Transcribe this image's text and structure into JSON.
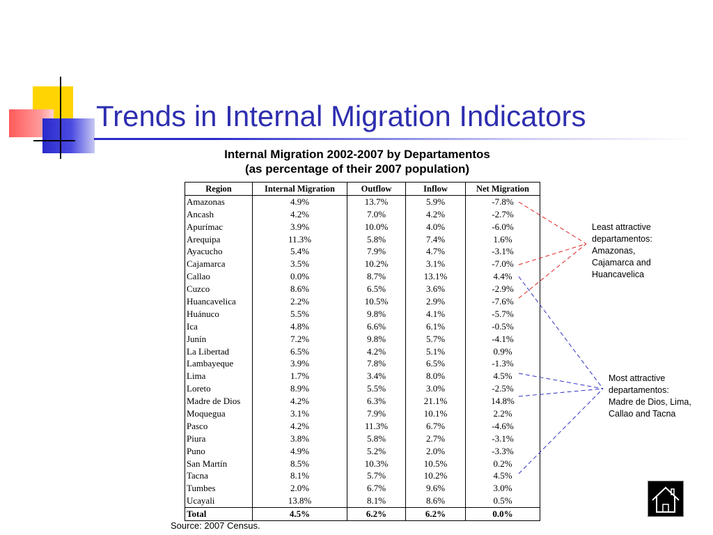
{
  "title": "Trends in Internal Migration Indicators",
  "table_caption": {
    "line1": "Internal Migration 2002-2007 by Departamentos",
    "line2": "(as percentage of their 2007 population)"
  },
  "table": {
    "headers": [
      "Region",
      "Internal Migration",
      "Outflow",
      "Inflow",
      "Net Migration"
    ],
    "rows": [
      [
        "Amazonas",
        "4.9%",
        "13.7%",
        "5.9%",
        "-7.8%"
      ],
      [
        "Ancash",
        "4.2%",
        "7.0%",
        "4.2%",
        "-2.7%"
      ],
      [
        "Apurímac",
        "3.9%",
        "10.0%",
        "4.0%",
        "-6.0%"
      ],
      [
        "Arequipa",
        "11.3%",
        "5.8%",
        "7.4%",
        "1.6%"
      ],
      [
        "Ayacucho",
        "5.4%",
        "7.9%",
        "4.7%",
        "-3.1%"
      ],
      [
        "Cajamarca",
        "3.5%",
        "10.2%",
        "3.1%",
        "-7.0%"
      ],
      [
        "Callao",
        "0.0%",
        "8.7%",
        "13.1%",
        "4.4%"
      ],
      [
        "Cuzco",
        "8.6%",
        "6.5%",
        "3.6%",
        "-2.9%"
      ],
      [
        "Huancavelica",
        "2.2%",
        "10.5%",
        "2.9%",
        "-7.6%"
      ],
      [
        "Huánuco",
        "5.5%",
        "9.8%",
        "4.1%",
        "-5.7%"
      ],
      [
        "Ica",
        "4.8%",
        "6.6%",
        "6.1%",
        "-0.5%"
      ],
      [
        "Junín",
        "7.2%",
        "9.8%",
        "5.7%",
        "-4.1%"
      ],
      [
        "La Libertad",
        "6.5%",
        "4.2%",
        "5.1%",
        "0.9%"
      ],
      [
        "Lambayeque",
        "3.9%",
        "7.8%",
        "6.5%",
        "-1.3%"
      ],
      [
        "Lima",
        "1.7%",
        "3.4%",
        "8.0%",
        "4.5%"
      ],
      [
        "Loreto",
        "8.9%",
        "5.5%",
        "3.0%",
        "-2.5%"
      ],
      [
        "Madre de Dios",
        "4.2%",
        "6.3%",
        "21.1%",
        "14.8%"
      ],
      [
        "Moquegua",
        "3.1%",
        "7.9%",
        "10.1%",
        "2.2%"
      ],
      [
        "Pasco",
        "4.2%",
        "11.3%",
        "6.7%",
        "-4.6%"
      ],
      [
        "Piura",
        "3.8%",
        "5.8%",
        "2.7%",
        "-3.1%"
      ],
      [
        "Puno",
        "4.9%",
        "5.2%",
        "2.0%",
        "-3.3%"
      ],
      [
        "San Martín",
        "8.5%",
        "10.3%",
        "10.5%",
        "0.2%"
      ],
      [
        "Tacna",
        "8.1%",
        "5.7%",
        "10.2%",
        "4.5%"
      ],
      [
        "Tumbes",
        "2.0%",
        "6.7%",
        "9.6%",
        "3.0%"
      ],
      [
        "Ucayali",
        "13.8%",
        "8.1%",
        "8.6%",
        "0.5%"
      ]
    ],
    "total": [
      "Total",
      "4.5%",
      "6.2%",
      "6.2%",
      "0.0%"
    ]
  },
  "source": "Source: 2007 Census.",
  "annotations": {
    "least_attractive": {
      "text": "Least attractive departamentos: Amazonas, Cajamarca and Huancavelica",
      "color": "#e02020"
    },
    "most_attractive": {
      "text": "Most attractive departamentos: Madre de Dios, Lima, Callao and Tacna",
      "color": "#3030c0"
    }
  },
  "colors": {
    "title": "#2e2eb0",
    "deco_yellow": "#ffd400",
    "deco_red": "#ff5a5a",
    "deco_blue": "#2a2acc"
  },
  "home_button": {
    "icon": "home-icon"
  }
}
